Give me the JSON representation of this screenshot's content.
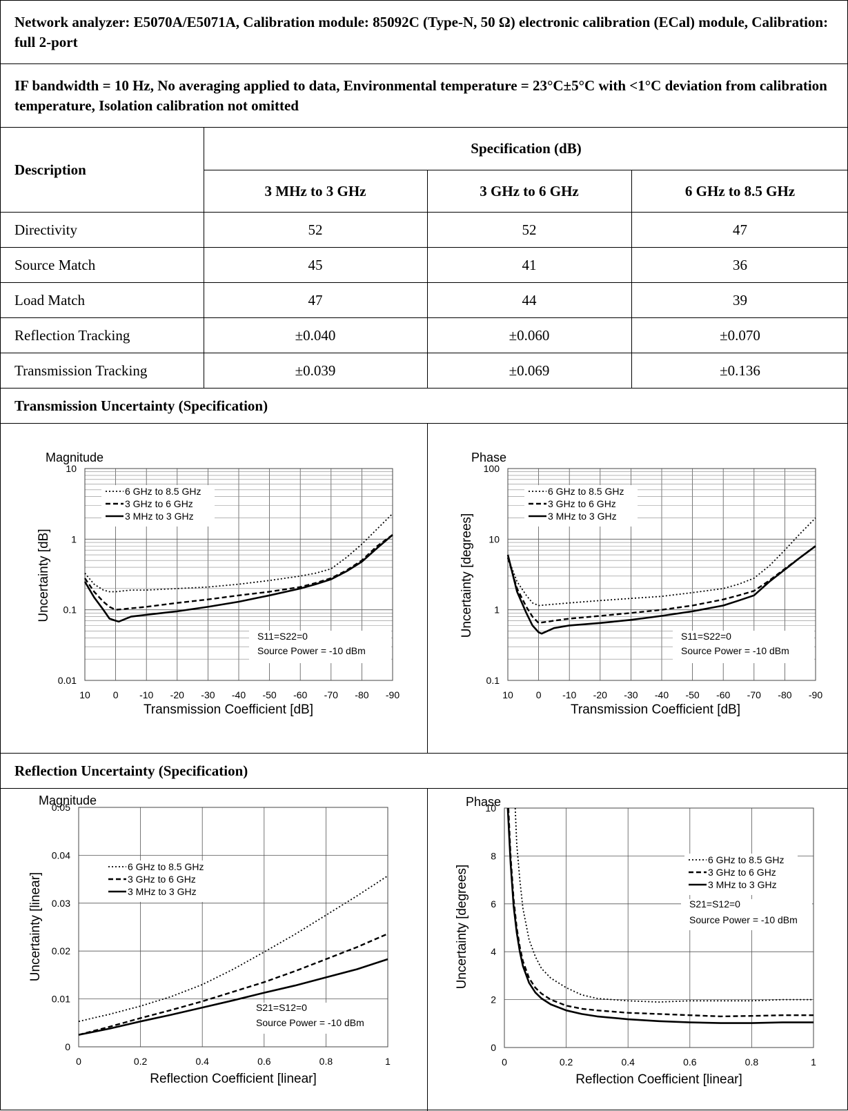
{
  "header": {
    "line1": "Network analyzer: E5070A/E5071A, Calibration module: 85092C (Type-N, 50 Ω) electronic calibration (ECal) module, Calibration: full 2-port",
    "line2": "IF bandwidth = 10 Hz, No averaging applied to data, Environmental temperature = 23°C±5°C with <1°C deviation from calibration temperature, Isolation calibration not omitted"
  },
  "spec_table": {
    "description_header": "Description",
    "spec_header": "Specification (dB)",
    "columns": [
      "3 MHz to 3 GHz",
      "3 GHz to 6 GHz",
      "6 GHz to 8.5 GHz"
    ],
    "rows": [
      {
        "label": "Directivity",
        "values": [
          "52",
          "52",
          "47"
        ]
      },
      {
        "label": "Source Match",
        "values": [
          "45",
          "41",
          "36"
        ]
      },
      {
        "label": "Load Match",
        "values": [
          "47",
          "44",
          "39"
        ]
      },
      {
        "label": "Reflection Tracking",
        "values": [
          "±0.040",
          "±0.060",
          "±0.070"
        ]
      },
      {
        "label": "Transmission Tracking",
        "values": [
          "±0.039",
          "±0.069",
          "±0.136"
        ]
      }
    ]
  },
  "sections": {
    "transmission": "Transmission Uncertainty (Specification)",
    "reflection": "Reflection Uncertainty (Specification)"
  },
  "chart_data": [
    {
      "type": "line",
      "title": "Magnitude",
      "xlabel": "Transmission Coefficient [dB]",
      "ylabel": "Uncertainty [dB]",
      "xlim": [
        10,
        -90
      ],
      "ylim": [
        0.01,
        10
      ],
      "yscale": "log",
      "grid": true,
      "x_ticks": [
        "10",
        "0",
        "-10",
        "-20",
        "-30",
        "-40",
        "-50",
        "-60",
        "-70",
        "-80",
        "-90"
      ],
      "y_ticks": [
        "10",
        "1",
        "0.1",
        "0.01"
      ],
      "legend_position": "top-left",
      "annotation": [
        "S11=S22=0",
        "Source Power = -10 dBm"
      ],
      "series": [
        {
          "name": "6 GHz to 8.5 GHz",
          "style": "dotted",
          "x": [
            10,
            7,
            4,
            2,
            0,
            -5,
            -10,
            -20,
            -30,
            -40,
            -50,
            -60,
            -65,
            -70,
            -75,
            -80,
            -85,
            -90
          ],
          "y": [
            0.33,
            0.23,
            0.19,
            0.18,
            0.18,
            0.19,
            0.19,
            0.2,
            0.21,
            0.23,
            0.26,
            0.3,
            0.33,
            0.38,
            0.55,
            0.85,
            1.4,
            2.3
          ]
        },
        {
          "name": "3 GHz to 6 GHz",
          "style": "dashed",
          "x": [
            10,
            7,
            4,
            2,
            0,
            -5,
            -10,
            -20,
            -30,
            -40,
            -50,
            -60,
            -65,
            -70,
            -75,
            -80,
            -85,
            -90
          ],
          "y": [
            0.28,
            0.18,
            0.13,
            0.11,
            0.1,
            0.105,
            0.11,
            0.125,
            0.14,
            0.16,
            0.18,
            0.21,
            0.24,
            0.28,
            0.36,
            0.5,
            0.8,
            1.15
          ]
        },
        {
          "name": "3 MHz to 3 GHz",
          "style": "solid",
          "x": [
            10,
            7,
            4,
            2,
            0,
            -1,
            -5,
            -10,
            -20,
            -30,
            -40,
            -50,
            -60,
            -65,
            -70,
            -75,
            -80,
            -85,
            -90
          ],
          "y": [
            0.25,
            0.15,
            0.1,
            0.075,
            0.07,
            0.068,
            0.08,
            0.085,
            0.095,
            0.11,
            0.13,
            0.16,
            0.2,
            0.23,
            0.27,
            0.35,
            0.48,
            0.75,
            1.15
          ]
        }
      ]
    },
    {
      "type": "line",
      "title": "Phase",
      "xlabel": "Transmission Coefficient [dB]",
      "ylabel": "Uncertainty [degrees]",
      "xlim": [
        10,
        -90
      ],
      "ylim": [
        0.1,
        100
      ],
      "yscale": "log",
      "grid": true,
      "x_ticks": [
        "10",
        "0",
        "-10",
        "-20",
        "-30",
        "-40",
        "-50",
        "-60",
        "-70",
        "-80",
        "-90"
      ],
      "y_ticks": [
        "100",
        "10",
        "1",
        "0.1"
      ],
      "legend_position": "top-left",
      "annotation": [
        "S11=S22=0",
        "Source Power = -10 dBm"
      ],
      "series": [
        {
          "name": "6 GHz to 8.5 GHz",
          "style": "dotted",
          "x": [
            10,
            7,
            4,
            2,
            0,
            -5,
            -10,
            -20,
            -30,
            -40,
            -50,
            -60,
            -65,
            -70,
            -75,
            -80,
            -85,
            -90
          ],
          "y": [
            5.5,
            2.5,
            1.6,
            1.25,
            1.15,
            1.2,
            1.25,
            1.35,
            1.45,
            1.55,
            1.75,
            2.0,
            2.3,
            2.8,
            4.2,
            7.0,
            12.0,
            20.0
          ]
        },
        {
          "name": "3 GHz to 6 GHz",
          "style": "dashed",
          "x": [
            10,
            7,
            4,
            2,
            0,
            -5,
            -10,
            -20,
            -30,
            -40,
            -50,
            -60,
            -65,
            -70,
            -75,
            -80,
            -85,
            -90
          ],
          "y": [
            5.5,
            2.0,
            1.1,
            0.8,
            0.65,
            0.7,
            0.75,
            0.82,
            0.9,
            1.0,
            1.15,
            1.4,
            1.6,
            1.85,
            2.6,
            3.8,
            5.5,
            8.0
          ]
        },
        {
          "name": "3 MHz to 3 GHz",
          "style": "solid",
          "x": [
            10,
            7,
            4,
            2,
            0,
            -1,
            -5,
            -10,
            -20,
            -30,
            -40,
            -50,
            -60,
            -65,
            -70,
            -75,
            -80,
            -85,
            -90
          ],
          "y": [
            6.0,
            1.8,
            0.9,
            0.6,
            0.48,
            0.46,
            0.55,
            0.6,
            0.65,
            0.72,
            0.82,
            0.95,
            1.15,
            1.35,
            1.6,
            2.5,
            3.7,
            5.5,
            8.0
          ]
        }
      ]
    },
    {
      "type": "line",
      "title": "Magnitude",
      "xlabel": "Reflection Coefficient [linear]",
      "ylabel": "Uncertainty [linear]",
      "xlim": [
        0,
        1
      ],
      "ylim": [
        0,
        0.05
      ],
      "grid": true,
      "x_ticks": [
        "0",
        "0.2",
        "0.4",
        "0.6",
        "0.8",
        "1"
      ],
      "y_ticks": [
        "0.05",
        "0.04",
        "0.03",
        "0.02",
        "0.01",
        "0"
      ],
      "legend_position": "top-left",
      "annotation": [
        "S21=S12=0",
        "Source Power = -10 dBm"
      ],
      "series": [
        {
          "name": "6 GHz to 8.5 GHz",
          "style": "dotted",
          "x": [
            0,
            0.1,
            0.2,
            0.3,
            0.4,
            0.5,
            0.6,
            0.7,
            0.8,
            0.9,
            1.0
          ],
          "y": [
            0.0053,
            0.0068,
            0.0085,
            0.0105,
            0.013,
            0.0162,
            0.0198,
            0.0235,
            0.0275,
            0.0315,
            0.0357
          ]
        },
        {
          "name": "3 GHz to 6 GHz",
          "style": "dashed",
          "x": [
            0,
            0.1,
            0.2,
            0.3,
            0.4,
            0.5,
            0.6,
            0.7,
            0.8,
            0.9,
            1.0
          ],
          "y": [
            0.0025,
            0.0042,
            0.006,
            0.0077,
            0.0095,
            0.0115,
            0.0135,
            0.0158,
            0.0183,
            0.0208,
            0.0236
          ]
        },
        {
          "name": "3 MHz to 3 GHz",
          "style": "solid",
          "x": [
            0,
            0.1,
            0.2,
            0.3,
            0.4,
            0.5,
            0.6,
            0.7,
            0.8,
            0.9,
            1.0
          ],
          "y": [
            0.0025,
            0.0038,
            0.0053,
            0.0067,
            0.0082,
            0.0097,
            0.0113,
            0.0128,
            0.0145,
            0.0162,
            0.0183
          ]
        }
      ]
    },
    {
      "type": "line",
      "title": "Phase",
      "xlabel": "Reflection Coefficient [linear]",
      "ylabel": "Uncertainty [degrees]",
      "xlim": [
        0,
        1
      ],
      "ylim": [
        0,
        10
      ],
      "grid": true,
      "x_ticks": [
        "0",
        "0.2",
        "0.4",
        "0.6",
        "0.8",
        "1"
      ],
      "y_ticks": [
        "10",
        "8",
        "6",
        "4",
        "2",
        "0"
      ],
      "legend_position": "top-right",
      "annotation": [
        "S21=S12=0",
        "Source Power = -10 dBm"
      ],
      "series": [
        {
          "name": "6 GHz to 8.5 GHz",
          "style": "dotted",
          "x": [
            0.035,
            0.04,
            0.05,
            0.06,
            0.08,
            0.1,
            0.12,
            0.15,
            0.2,
            0.25,
            0.3,
            0.4,
            0.5,
            0.6,
            0.7,
            0.8,
            0.9,
            1.0
          ],
          "y": [
            10,
            8.5,
            7.0,
            5.8,
            4.5,
            3.8,
            3.3,
            2.9,
            2.5,
            2.2,
            2.05,
            1.95,
            1.9,
            1.95,
            1.95,
            1.95,
            2.0,
            2.0
          ]
        },
        {
          "name": "3 GHz to 6 GHz",
          "style": "dashed",
          "x": [
            0.013,
            0.02,
            0.03,
            0.04,
            0.05,
            0.06,
            0.08,
            0.1,
            0.12,
            0.15,
            0.2,
            0.25,
            0.3,
            0.4,
            0.5,
            0.6,
            0.7,
            0.8,
            0.9,
            1.0
          ],
          "y": [
            10,
            8.0,
            6.2,
            5.0,
            4.2,
            3.6,
            2.9,
            2.5,
            2.25,
            2.0,
            1.75,
            1.62,
            1.55,
            1.45,
            1.4,
            1.35,
            1.3,
            1.32,
            1.35,
            1.35
          ]
        },
        {
          "name": "3 MHz to 3 GHz",
          "style": "solid",
          "x": [
            0.011,
            0.02,
            0.03,
            0.04,
            0.05,
            0.06,
            0.08,
            0.1,
            0.12,
            0.15,
            0.2,
            0.25,
            0.3,
            0.4,
            0.5,
            0.6,
            0.7,
            0.8,
            0.9,
            1.0
          ],
          "y": [
            10,
            7.7,
            5.9,
            4.8,
            4.0,
            3.4,
            2.7,
            2.3,
            2.05,
            1.8,
            1.55,
            1.4,
            1.3,
            1.18,
            1.1,
            1.05,
            1.02,
            1.02,
            1.05,
            1.05
          ]
        }
      ]
    }
  ]
}
